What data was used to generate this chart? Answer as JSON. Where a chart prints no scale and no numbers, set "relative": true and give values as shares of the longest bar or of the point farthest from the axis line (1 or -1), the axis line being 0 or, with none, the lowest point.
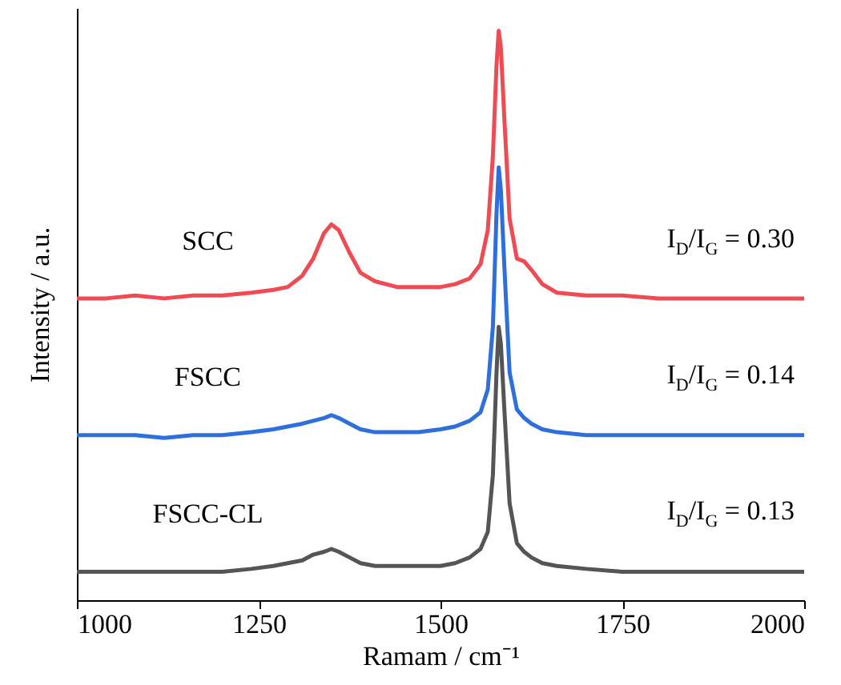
{
  "chart_data": {
    "type": "line",
    "relative": true,
    "xlabel": "Ramam / cm⁻¹",
    "ylabel": "Intensity / a.u.",
    "x": [
      1000,
      1040,
      1080,
      1120,
      1160,
      1200,
      1240,
      1270,
      1290,
      1310,
      1325,
      1340,
      1350,
      1360,
      1375,
      1390,
      1410,
      1440,
      1470,
      1500,
      1520,
      1540,
      1555,
      1565,
      1572,
      1577,
      1580,
      1583,
      1588,
      1595,
      1605,
      1615,
      1625,
      1640,
      1660,
      1700,
      1750,
      1800,
      1850,
      1900,
      1950,
      2000
    ],
    "xlim": [
      1000,
      2000
    ],
    "xticks": [
      1000,
      1250,
      1500,
      1750,
      2000
    ],
    "grid": false,
    "marker": "none",
    "line_style": "solid",
    "series": [
      {
        "name": "SCC",
        "color": "#ef4b54",
        "values": [
          0.53,
          0.53,
          0.535,
          0.53,
          0.535,
          0.535,
          0.54,
          0.545,
          0.55,
          0.57,
          0.6,
          0.645,
          0.66,
          0.65,
          0.61,
          0.575,
          0.56,
          0.55,
          0.55,
          0.55,
          0.555,
          0.565,
          0.59,
          0.65,
          0.78,
          0.94,
          1.0,
          0.97,
          0.84,
          0.67,
          0.6,
          0.595,
          0.58,
          0.555,
          0.54,
          0.535,
          0.535,
          0.53,
          0.53,
          0.53,
          0.53,
          0.53
        ]
      },
      {
        "name": "FSCC",
        "color": "#2e6fdb",
        "values": [
          0.29,
          0.29,
          0.29,
          0.285,
          0.29,
          0.29,
          0.295,
          0.3,
          0.305,
          0.31,
          0.315,
          0.32,
          0.325,
          0.32,
          0.31,
          0.3,
          0.295,
          0.295,
          0.295,
          0.3,
          0.305,
          0.315,
          0.33,
          0.37,
          0.48,
          0.68,
          0.76,
          0.72,
          0.58,
          0.4,
          0.335,
          0.32,
          0.31,
          0.3,
          0.295,
          0.29,
          0.29,
          0.29,
          0.29,
          0.29,
          0.29,
          0.29
        ]
      },
      {
        "name": "FSCC-CL",
        "color": "#555555",
        "values": [
          0.05,
          0.05,
          0.05,
          0.05,
          0.05,
          0.05,
          0.055,
          0.06,
          0.065,
          0.07,
          0.08,
          0.085,
          0.09,
          0.085,
          0.075,
          0.065,
          0.06,
          0.06,
          0.06,
          0.06,
          0.065,
          0.075,
          0.09,
          0.12,
          0.22,
          0.4,
          0.48,
          0.45,
          0.33,
          0.17,
          0.1,
          0.085,
          0.075,
          0.065,
          0.06,
          0.055,
          0.05,
          0.05,
          0.05,
          0.05,
          0.05,
          0.05
        ]
      }
    ],
    "annotations": [
      "I$_{D}$/I$_{G}$ = 0.30",
      "I$_{D}$/I$_{G}$ = 0.14",
      "I$_{D}$/I$_{G}$ = 0.13"
    ]
  }
}
